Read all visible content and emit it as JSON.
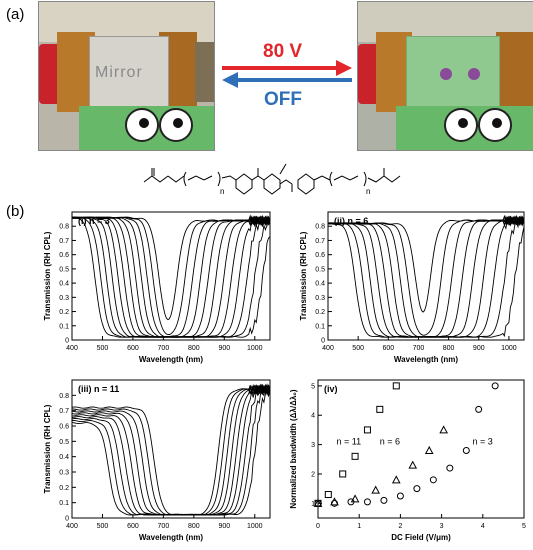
{
  "panel_a": {
    "label": "(a)",
    "left_photo_text": "Mirror",
    "arrow_on_label": "80 V",
    "arrow_off_label": "OFF",
    "colors": {
      "on": "#e3262b",
      "off": "#2f6fb8",
      "device_green": "#68b86a"
    }
  },
  "panel_b": {
    "label": "(b)",
    "molecule_subscript": "n",
    "molecule_group": "CH2"
  },
  "chart_data": [
    {
      "type": "line",
      "panel_label": "(i) n = 3",
      "xlabel": "Wavelength (nm)",
      "ylabel": "Transmission (RH CPL)",
      "xlim": [
        400,
        1050
      ],
      "ylim": [
        0,
        0.9
      ],
      "xticks": [
        400,
        500,
        600,
        700,
        800,
        900,
        1000
      ],
      "yticks": [
        "0",
        "0.1",
        "0.2",
        "0.3",
        "0.4",
        "0.5",
        "0.6",
        "0.7",
        "0.8"
      ],
      "series_count": 12
    },
    {
      "type": "line",
      "panel_label": "(ii) n = 6",
      "xlabel": "Wavelength (nm)",
      "ylabel": "Transmission (RH CPL)",
      "xlim": [
        400,
        1050
      ],
      "ylim": [
        0,
        0.9
      ],
      "xticks": [
        400,
        500,
        600,
        700,
        800,
        900,
        1000
      ],
      "yticks": [
        "0",
        "0.1",
        "0.2",
        "0.3",
        "0.4",
        "0.5",
        "0.6",
        "0.7",
        "0.8"
      ],
      "series_count": 9
    },
    {
      "type": "line",
      "panel_label": "(iii) n = 11",
      "xlabel": "Wavelength (nm)",
      "ylabel": "Transmission (RH CPL)",
      "xlim": [
        400,
        1050
      ],
      "ylim": [
        0,
        0.9
      ],
      "xticks": [
        400,
        500,
        600,
        700,
        800,
        900,
        1000
      ],
      "yticks": [
        "0",
        "0.1",
        "0.2",
        "0.3",
        "0.4",
        "0.5",
        "0.6",
        "0.7",
        "0.8"
      ],
      "series_count": 9
    },
    {
      "type": "scatter",
      "panel_label": "(iv)",
      "xlabel": "DC Field (V/μm)",
      "ylabel": "Normalized bandwidth (Δλ/Δλ₀)",
      "xlim": [
        0,
        5
      ],
      "ylim": [
        0.5,
        5.2
      ],
      "xticks": [
        0,
        1,
        2,
        3,
        4,
        5
      ],
      "yticks": [
        1,
        2,
        3,
        4,
        5
      ],
      "annotations": [
        "n = 11",
        "n = 6",
        "n = 3"
      ],
      "series": [
        {
          "name": "n = 11",
          "marker": "square",
          "x": [
            0,
            0.25,
            0.6,
            0.9,
            1.2,
            1.5,
            1.9
          ],
          "y": [
            1.0,
            1.3,
            2.0,
            2.6,
            3.5,
            4.2,
            5.0
          ]
        },
        {
          "name": "n = 6",
          "marker": "triangle",
          "x": [
            0,
            0.4,
            0.9,
            1.4,
            1.9,
            2.3,
            2.7,
            3.05
          ],
          "y": [
            1.0,
            1.05,
            1.15,
            1.45,
            1.8,
            2.3,
            2.8,
            3.5
          ]
        },
        {
          "name": "n = 3",
          "marker": "circle",
          "x": [
            0,
            0.4,
            0.8,
            1.2,
            1.6,
            2.0,
            2.4,
            2.8,
            3.2,
            3.6,
            3.9,
            4.3
          ],
          "y": [
            1.0,
            1.0,
            1.05,
            1.05,
            1.1,
            1.25,
            1.5,
            1.8,
            2.2,
            2.8,
            4.2,
            5.0
          ]
        }
      ]
    }
  ]
}
